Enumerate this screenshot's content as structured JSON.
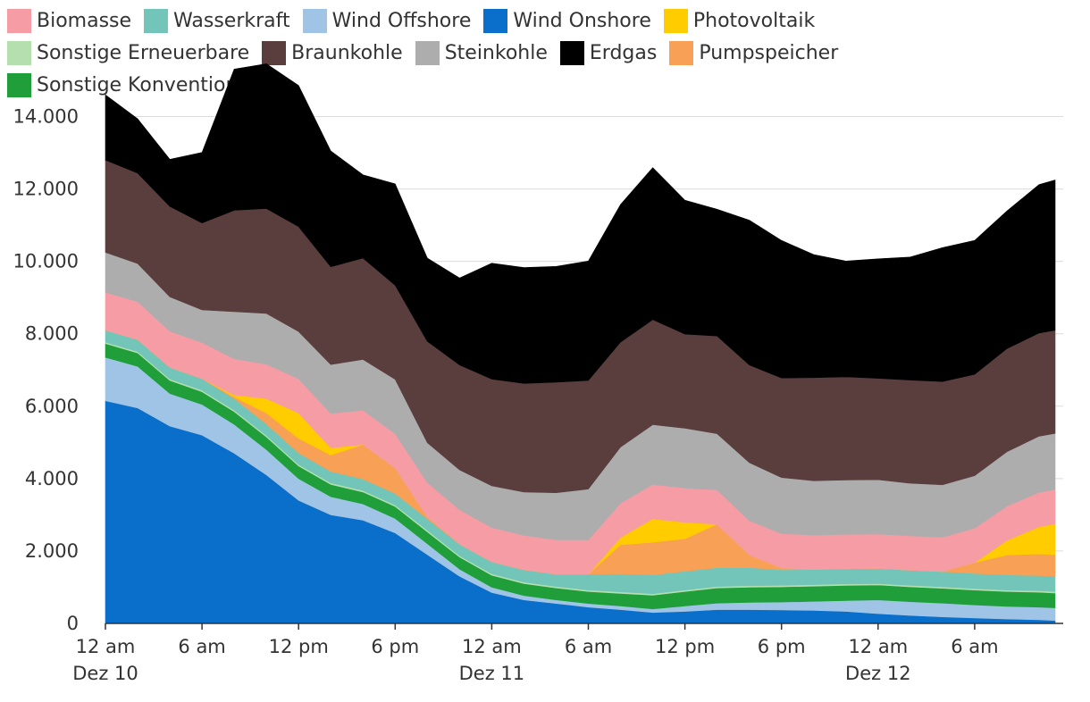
{
  "chart_data": {
    "type": "area",
    "stacked": true,
    "title": "",
    "xlabel": "",
    "ylabel": "",
    "ylim": [
      0,
      15000
    ],
    "yticks": [
      0,
      2000,
      4000,
      6000,
      8000,
      10000,
      12000,
      14000
    ],
    "ytick_labels": [
      "0",
      "2.000",
      "4.000",
      "6.000",
      "8.000",
      "10.000",
      "12.000",
      "14.000"
    ],
    "x_hours": [
      0,
      2,
      4,
      6,
      8,
      10,
      12,
      14,
      16,
      18,
      20,
      22,
      24,
      26,
      28,
      30,
      32,
      34,
      36,
      38,
      40,
      42,
      44,
      46,
      48,
      50,
      52,
      54,
      56,
      58,
      59
    ],
    "x_range_hours": [
      0,
      59.5
    ],
    "xticks": [
      {
        "hour": 0,
        "line1": "12 am",
        "line2": "Dez 10"
      },
      {
        "hour": 6,
        "line1": "6 am",
        "line2": ""
      },
      {
        "hour": 12,
        "line1": "12 pm",
        "line2": ""
      },
      {
        "hour": 18,
        "line1": "6 pm",
        "line2": ""
      },
      {
        "hour": 24,
        "line1": "12 am",
        "line2": "Dez 11"
      },
      {
        "hour": 30,
        "line1": "6 am",
        "line2": ""
      },
      {
        "hour": 36,
        "line1": "12 pm",
        "line2": ""
      },
      {
        "hour": 42,
        "line1": "6 pm",
        "line2": ""
      },
      {
        "hour": 48,
        "line1": "12 am",
        "line2": "Dez 12"
      },
      {
        "hour": 54,
        "line1": "6 am",
        "line2": ""
      }
    ],
    "grid": true,
    "legend_position": "top",
    "series": [
      {
        "name": "Wind Onshore",
        "color": "#0a6fca",
        "values": [
          6150,
          5950,
          5450,
          5200,
          4700,
          4100,
          3400,
          3000,
          2850,
          2500,
          1900,
          1300,
          850,
          650,
          550,
          450,
          380,
          300,
          330,
          380,
          380,
          370,
          360,
          330,
          270,
          220,
          180,
          150,
          120,
          100,
          80
        ]
      },
      {
        "name": "Wind Offshore",
        "color": "#a0c4e6",
        "values": [
          1200,
          1150,
          900,
          850,
          800,
          700,
          600,
          500,
          450,
          400,
          300,
          200,
          150,
          120,
          100,
          100,
          100,
          100,
          150,
          180,
          200,
          220,
          250,
          300,
          380,
          380,
          380,
          360,
          350,
          350,
          350
        ]
      },
      {
        "name": "Sonstige Konventionelle",
        "color": "#1f9e3a",
        "values": [
          380,
          370,
          360,
          350,
          350,
          350,
          350,
          340,
          330,
          330,
          330,
          330,
          330,
          330,
          330,
          330,
          350,
          380,
          400,
          420,
          420,
          420,
          420,
          420,
          410,
          410,
          410,
          410,
          410,
          410,
          410
        ]
      },
      {
        "name": "Sonstige Erneuerbare",
        "color": "#b6dfb0",
        "values": [
          40,
          40,
          40,
          40,
          40,
          40,
          40,
          40,
          40,
          40,
          40,
          40,
          40,
          40,
          40,
          40,
          40,
          40,
          40,
          40,
          40,
          40,
          40,
          40,
          40,
          40,
          40,
          40,
          40,
          40,
          40
        ]
      },
      {
        "name": "Wasserkraft",
        "color": "#72c5b8",
        "values": [
          330,
          330,
          320,
          320,
          320,
          320,
          320,
          320,
          320,
          320,
          320,
          320,
          330,
          340,
          340,
          440,
          500,
          520,
          520,
          520,
          500,
          430,
          420,
          420,
          420,
          420,
          420,
          420,
          420,
          420,
          420
        ]
      },
      {
        "name": "Pumpspeicher",
        "color": "#f8a055",
        "values": [
          0,
          0,
          0,
          0,
          50,
          300,
          400,
          450,
          950,
          700,
          50,
          0,
          0,
          0,
          0,
          0,
          800,
          900,
          900,
          1200,
          350,
          50,
          0,
          0,
          0,
          0,
          0,
          300,
          550,
          600,
          600
        ]
      },
      {
        "name": "Photovoltaik",
        "color": "#ffcc00",
        "values": [
          0,
          0,
          0,
          0,
          50,
          400,
          700,
          200,
          0,
          0,
          0,
          0,
          0,
          0,
          0,
          0,
          200,
          650,
          450,
          0,
          0,
          0,
          0,
          0,
          0,
          0,
          0,
          0,
          400,
          750,
          850
        ]
      },
      {
        "name": "Biomasse",
        "color": "#f59ca5",
        "values": [
          1050,
          1050,
          1000,
          1000,
          1000,
          950,
          950,
          950,
          950,
          950,
          950,
          950,
          950,
          950,
          950,
          950,
          950,
          950,
          950,
          950,
          950,
          950,
          950,
          950,
          950,
          950,
          950,
          950,
          950,
          950,
          950
        ]
      },
      {
        "name": "Steinkohle",
        "color": "#adadad",
        "values": [
          1100,
          1050,
          950,
          900,
          1300,
          1400,
          1300,
          1350,
          1400,
          1500,
          1100,
          1100,
          1150,
          1200,
          1300,
          1400,
          1550,
          1650,
          1650,
          1550,
          1600,
          1550,
          1500,
          1500,
          1500,
          1450,
          1450,
          1450,
          1500,
          1550,
          1550
        ]
      },
      {
        "name": "Braunkohle",
        "color": "#5a3e3e",
        "values": [
          2550,
          2500,
          2500,
          2400,
          2800,
          2900,
          2900,
          2700,
          2800,
          2600,
          2800,
          2900,
          2950,
          3000,
          3050,
          3000,
          2900,
          2900,
          2600,
          2700,
          2700,
          2750,
          2850,
          2850,
          2800,
          2850,
          2850,
          2800,
          2850,
          2850,
          2850
        ]
      },
      {
        "name": "Erdgas",
        "color": "#000000",
        "values": [
          1800,
          1500,
          1300,
          1950,
          3900,
          4000,
          3900,
          3200,
          2300,
          2800,
          2300,
          2400,
          3200,
          3200,
          3200,
          3300,
          3800,
          4200,
          3700,
          3500,
          4000,
          3800,
          3400,
          3200,
          3300,
          3400,
          3700,
          3700,
          3800,
          4100,
          4150
        ]
      }
    ]
  },
  "legend": {
    "items": [
      {
        "label": "Biomasse",
        "color": "#f59ca5"
      },
      {
        "label": "Wasserkraft",
        "color": "#72c5b8"
      },
      {
        "label": "Wind Offshore",
        "color": "#a0c4e6"
      },
      {
        "label": "Wind Onshore",
        "color": "#0a6fca"
      },
      {
        "label": "Photovoltaik",
        "color": "#ffcc00"
      },
      {
        "label": "Sonstige Erneuerbare",
        "color": "#b6dfb0"
      },
      {
        "label": "Braunkohle",
        "color": "#5a3e3e"
      },
      {
        "label": "Steinkohle",
        "color": "#adadad"
      },
      {
        "label": "Erdgas",
        "color": "#000000"
      },
      {
        "label": "Pumpspeicher",
        "color": "#f8a055"
      },
      {
        "label": "Sonstige Konventionelle",
        "color": "#1f9e3a"
      }
    ]
  }
}
